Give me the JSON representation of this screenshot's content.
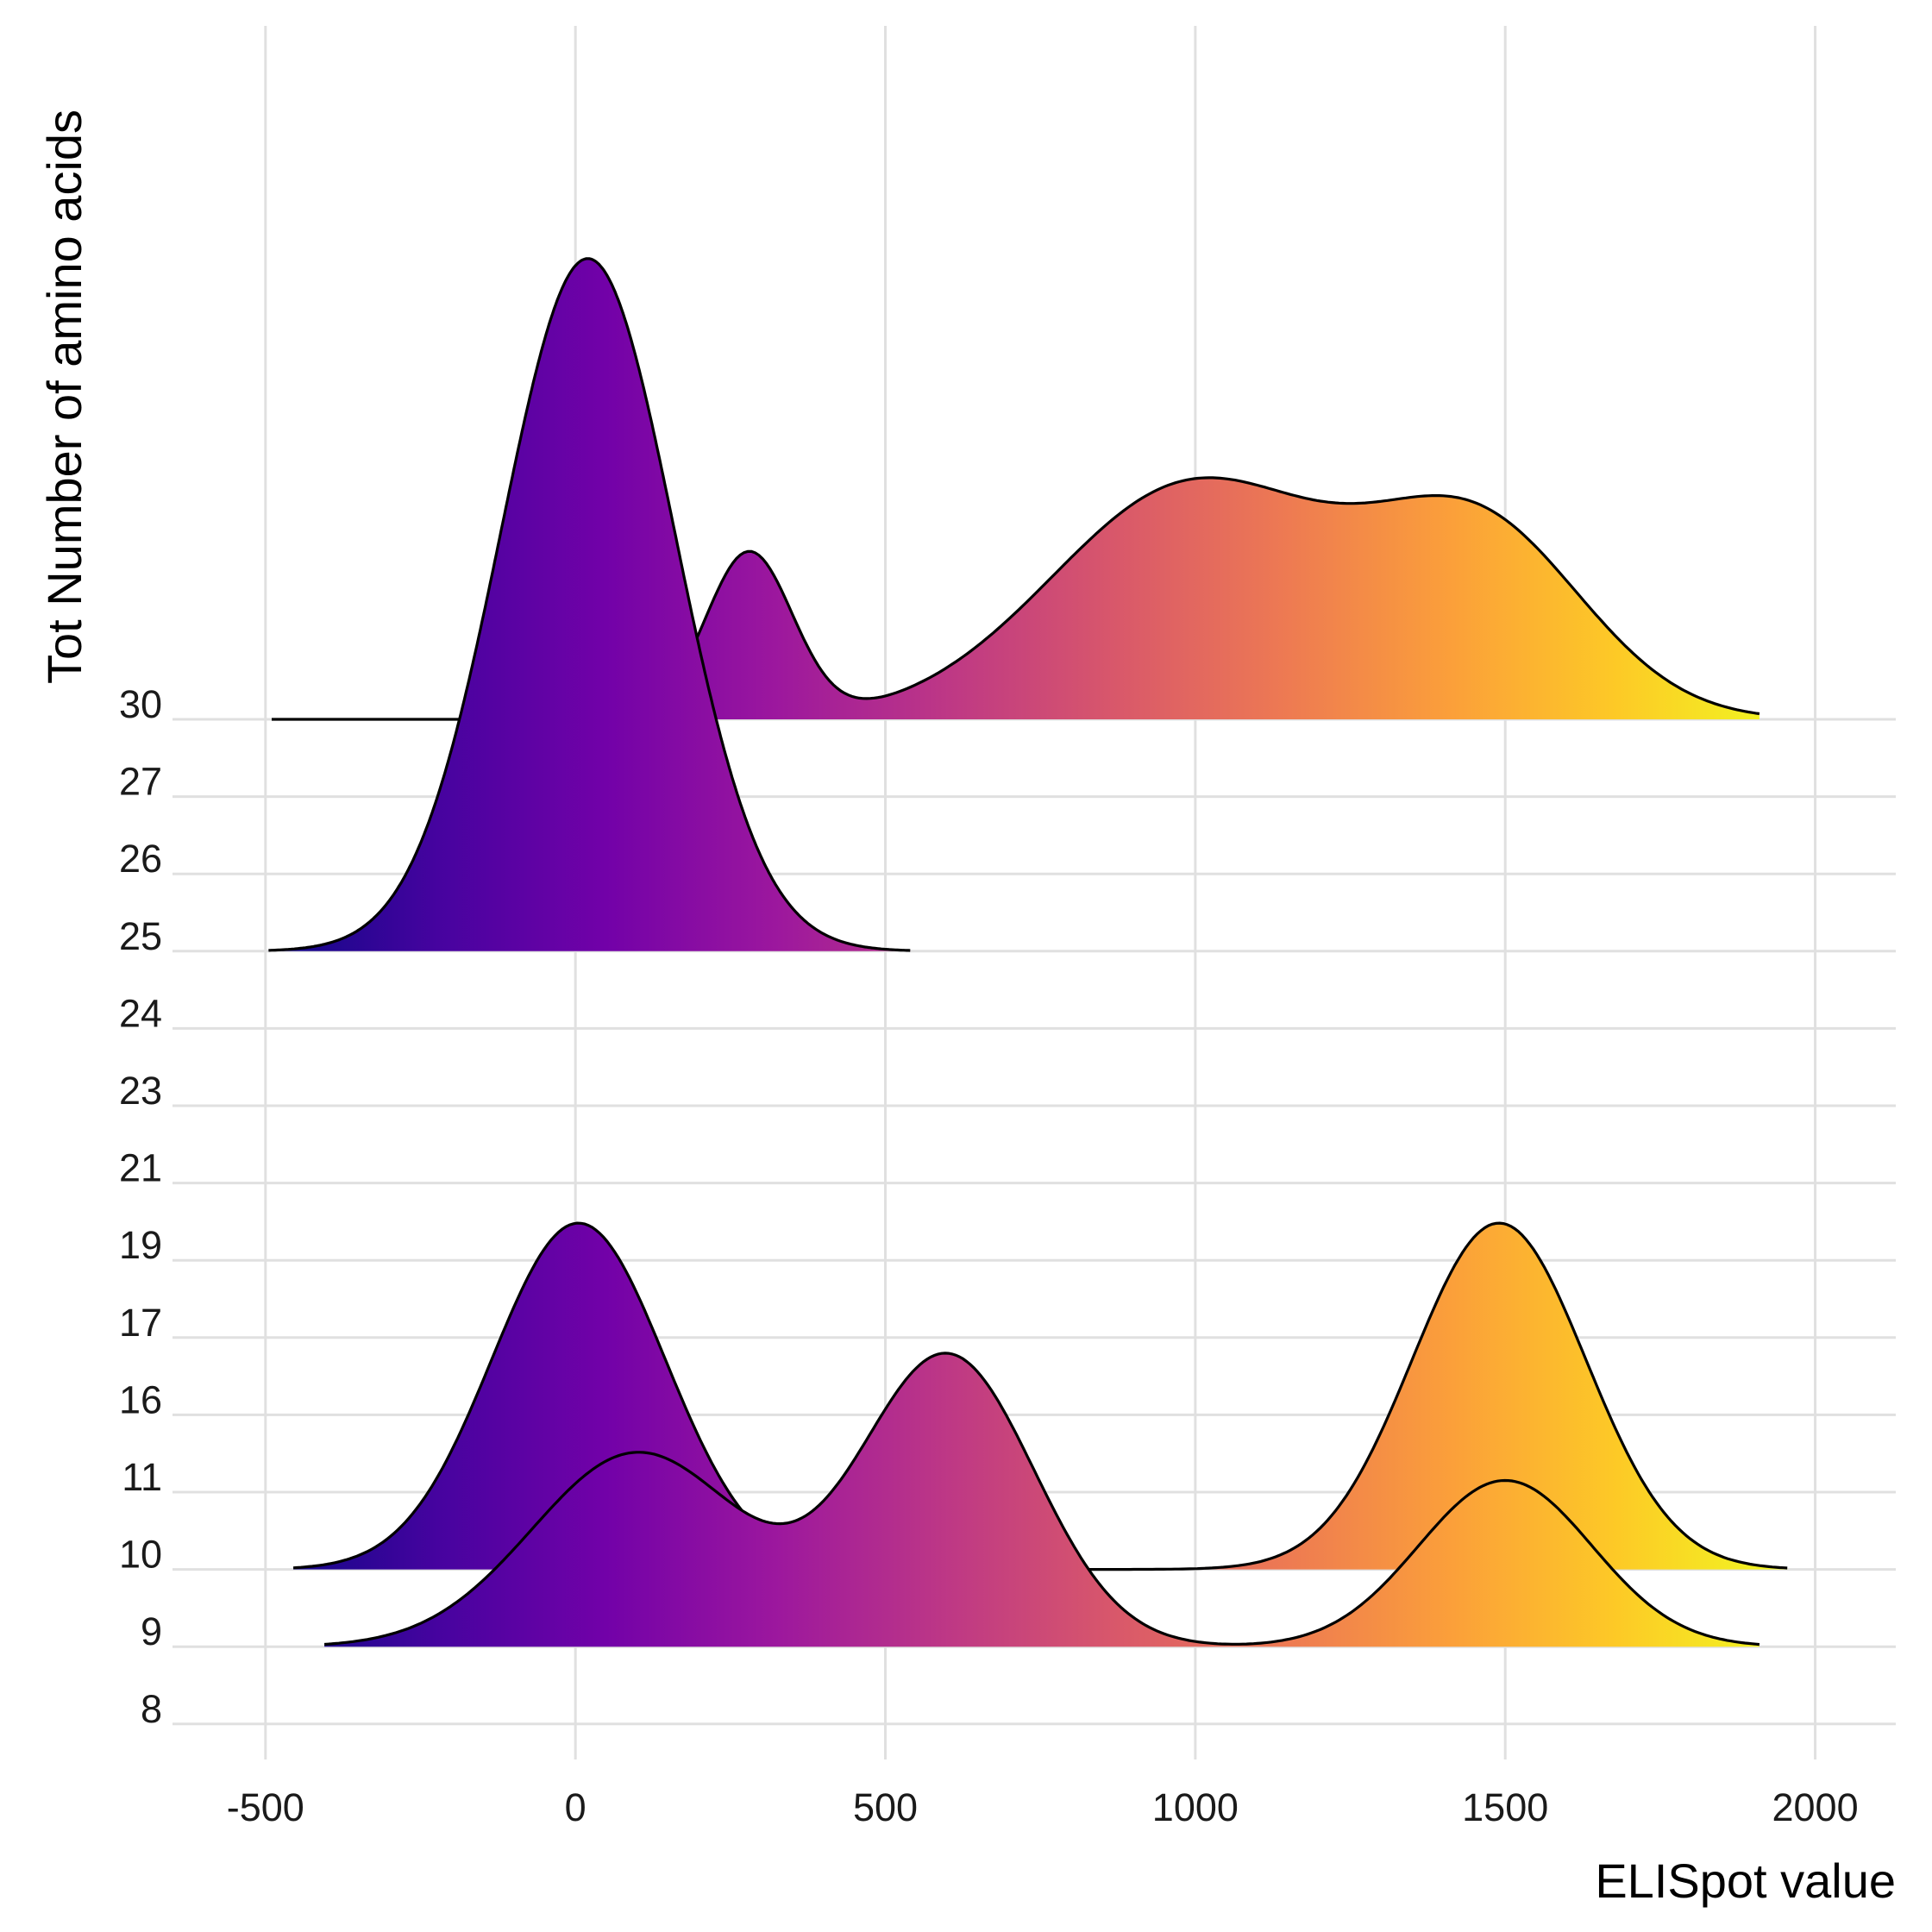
{
  "chart_data": {
    "type": "ridgeline",
    "xlabel": "ELISpot value",
    "ylabel": "Tot Number of amino acids",
    "x_ticks": [
      -500,
      0,
      500,
      1000,
      1500,
      2000
    ],
    "x_tick_labels": [
      "-500",
      "0",
      "500",
      "1000",
      "1500",
      "2000"
    ],
    "xlim": [
      -650,
      2130
    ],
    "categories": [
      "8",
      "9",
      "10",
      "11",
      "16",
      "17",
      "19",
      "21",
      "23",
      "24",
      "25",
      "26",
      "27",
      "30"
    ],
    "grid": true,
    "colormap": "plasma",
    "colormap_stops": [
      "#0d0887",
      "#46039f",
      "#7201a8",
      "#9c179e",
      "#bd3786",
      "#d8576b",
      "#ed7953",
      "#fb9f3a",
      "#fdca26",
      "#f0f921"
    ],
    "series": [
      {
        "category": "30",
        "x_range": [
          -490,
          1910
        ],
        "components": [
          {
            "weight": 0.12,
            "mean": 280,
            "sd": 70
          },
          {
            "weight": 0.56,
            "mean": 1000,
            "sd": 230
          },
          {
            "weight": 0.32,
            "mean": 1460,
            "sd": 170
          }
        ]
      },
      {
        "category": "25",
        "x_range": [
          -495,
          540
        ],
        "components": [
          {
            "weight": 1.0,
            "mean": 20,
            "sd": 140
          }
        ]
      },
      {
        "category": "10",
        "x_range": [
          -455,
          1955
        ],
        "components": [
          {
            "weight": 0.5,
            "mean": 5,
            "sd": 140
          },
          {
            "weight": 0.5,
            "mean": 1490,
            "sd": 140
          }
        ]
      },
      {
        "category": "9",
        "x_range": [
          -405,
          1910
        ],
        "components": [
          {
            "weight": 0.34,
            "mean": 100,
            "sd": 170
          },
          {
            "weight": 0.42,
            "mean": 600,
            "sd": 140
          },
          {
            "weight": 0.24,
            "mean": 1500,
            "sd": 140
          }
        ]
      }
    ]
  }
}
